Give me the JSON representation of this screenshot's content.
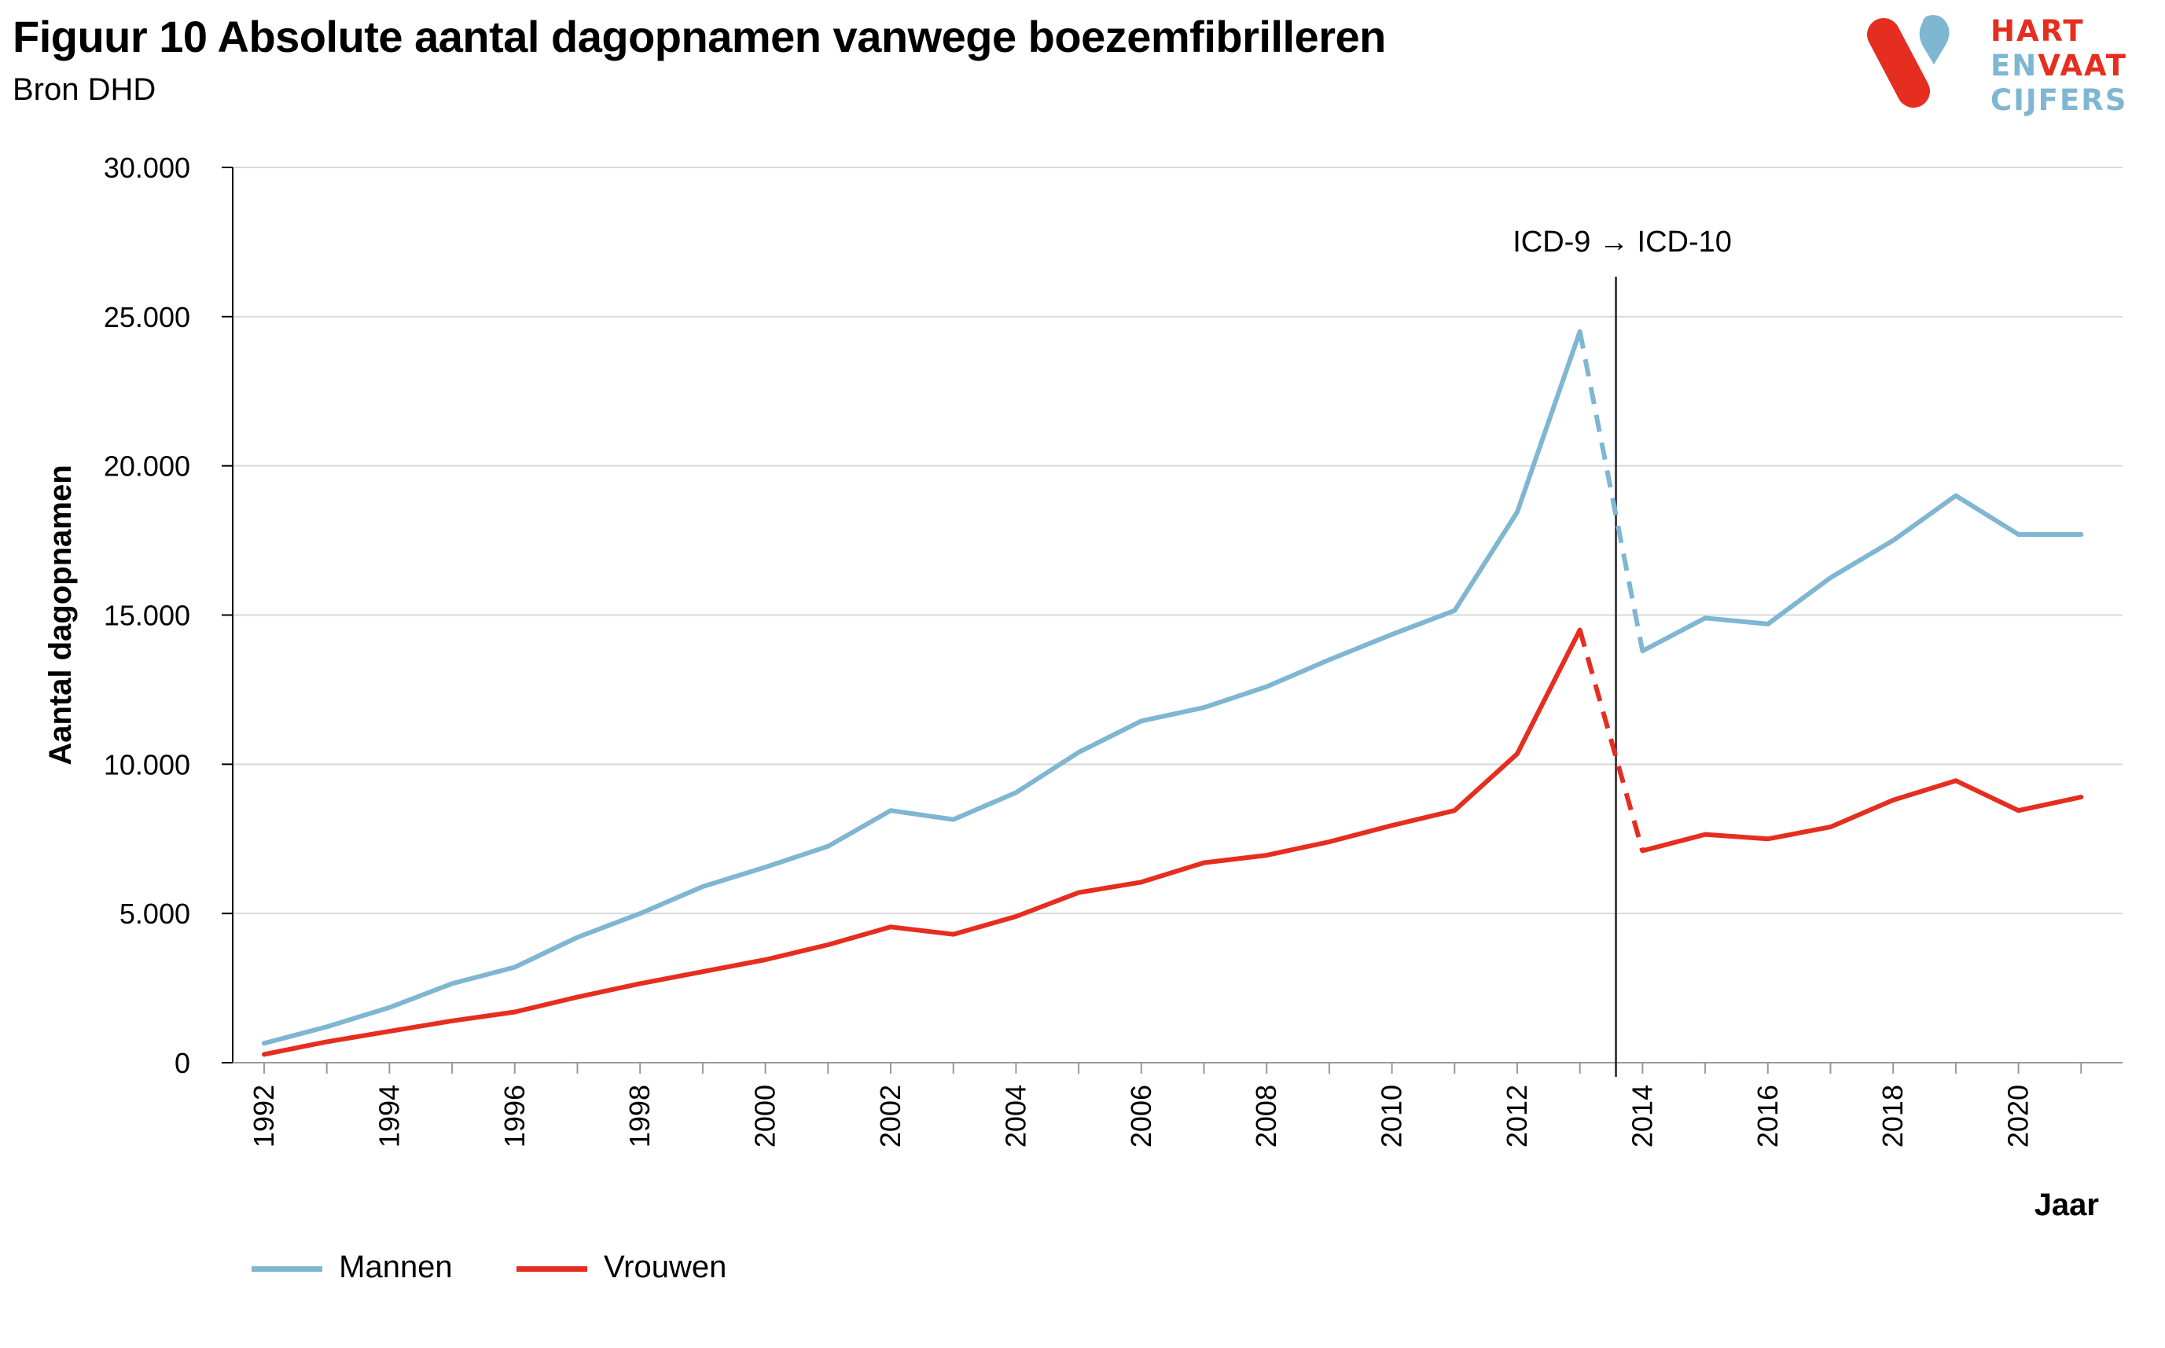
{
  "header": {
    "title": "Figuur 10 Absolute aantal dagopnamen vanwege boezemfibrilleren",
    "subtitle": "Bron DHD"
  },
  "logo": {
    "line1": "HART",
    "line2_a": "EN",
    "line2_b": "VAAT",
    "line3": "CIJFERS"
  },
  "colors": {
    "mannen": "#7fb6d2",
    "vrouwen": "#e52e1f",
    "grid": "#d9d9d9",
    "axis": "#000000"
  },
  "chart_data": {
    "type": "line",
    "x": [
      1992,
      1993,
      1994,
      1995,
      1996,
      1997,
      1998,
      1999,
      2000,
      2001,
      2002,
      2003,
      2004,
      2005,
      2006,
      2007,
      2008,
      2009,
      2010,
      2011,
      2012,
      2013,
      2014,
      2015,
      2016,
      2017,
      2018,
      2019,
      2020,
      2021
    ],
    "x_tick_labels": [
      "1992",
      "1994",
      "1996",
      "1998",
      "2000",
      "2002",
      "2004",
      "2006",
      "2008",
      "2010",
      "2012",
      "2014",
      "2016",
      "2018",
      "2020"
    ],
    "y_tick_labels": [
      "0",
      "5.000",
      "10.000",
      "15.000",
      "20.000",
      "25.000",
      "30.000"
    ],
    "ylim": [
      0,
      30000
    ],
    "ylabel": "Aantal dagopnamen",
    "xlabel": "Jaar",
    "annotation": "ICD-9 → ICD-10",
    "break_between": [
      2013,
      2014
    ],
    "series": [
      {
        "name": "Mannen",
        "values": [
          650,
          1200,
          1850,
          2650,
          3200,
          4200,
          5000,
          5900,
          6550,
          7250,
          8450,
          8150,
          9050,
          10400,
          11450,
          11900,
          12600,
          13500,
          14350,
          15150,
          18450,
          24500,
          13800,
          14900,
          14700,
          16250,
          17500,
          19000,
          17700,
          17700
        ]
      },
      {
        "name": "Vrouwen",
        "values": [
          280,
          700,
          1050,
          1400,
          1700,
          2200,
          2650,
          3050,
          3450,
          3950,
          4550,
          4300,
          4900,
          5700,
          6050,
          6700,
          6950,
          7400,
          7950,
          8450,
          10350,
          14500,
          7100,
          7650,
          7500,
          7900,
          8800,
          9450,
          8450,
          8900
        ]
      }
    ],
    "legend_position": "bottom-left",
    "grid": "horizontal"
  }
}
